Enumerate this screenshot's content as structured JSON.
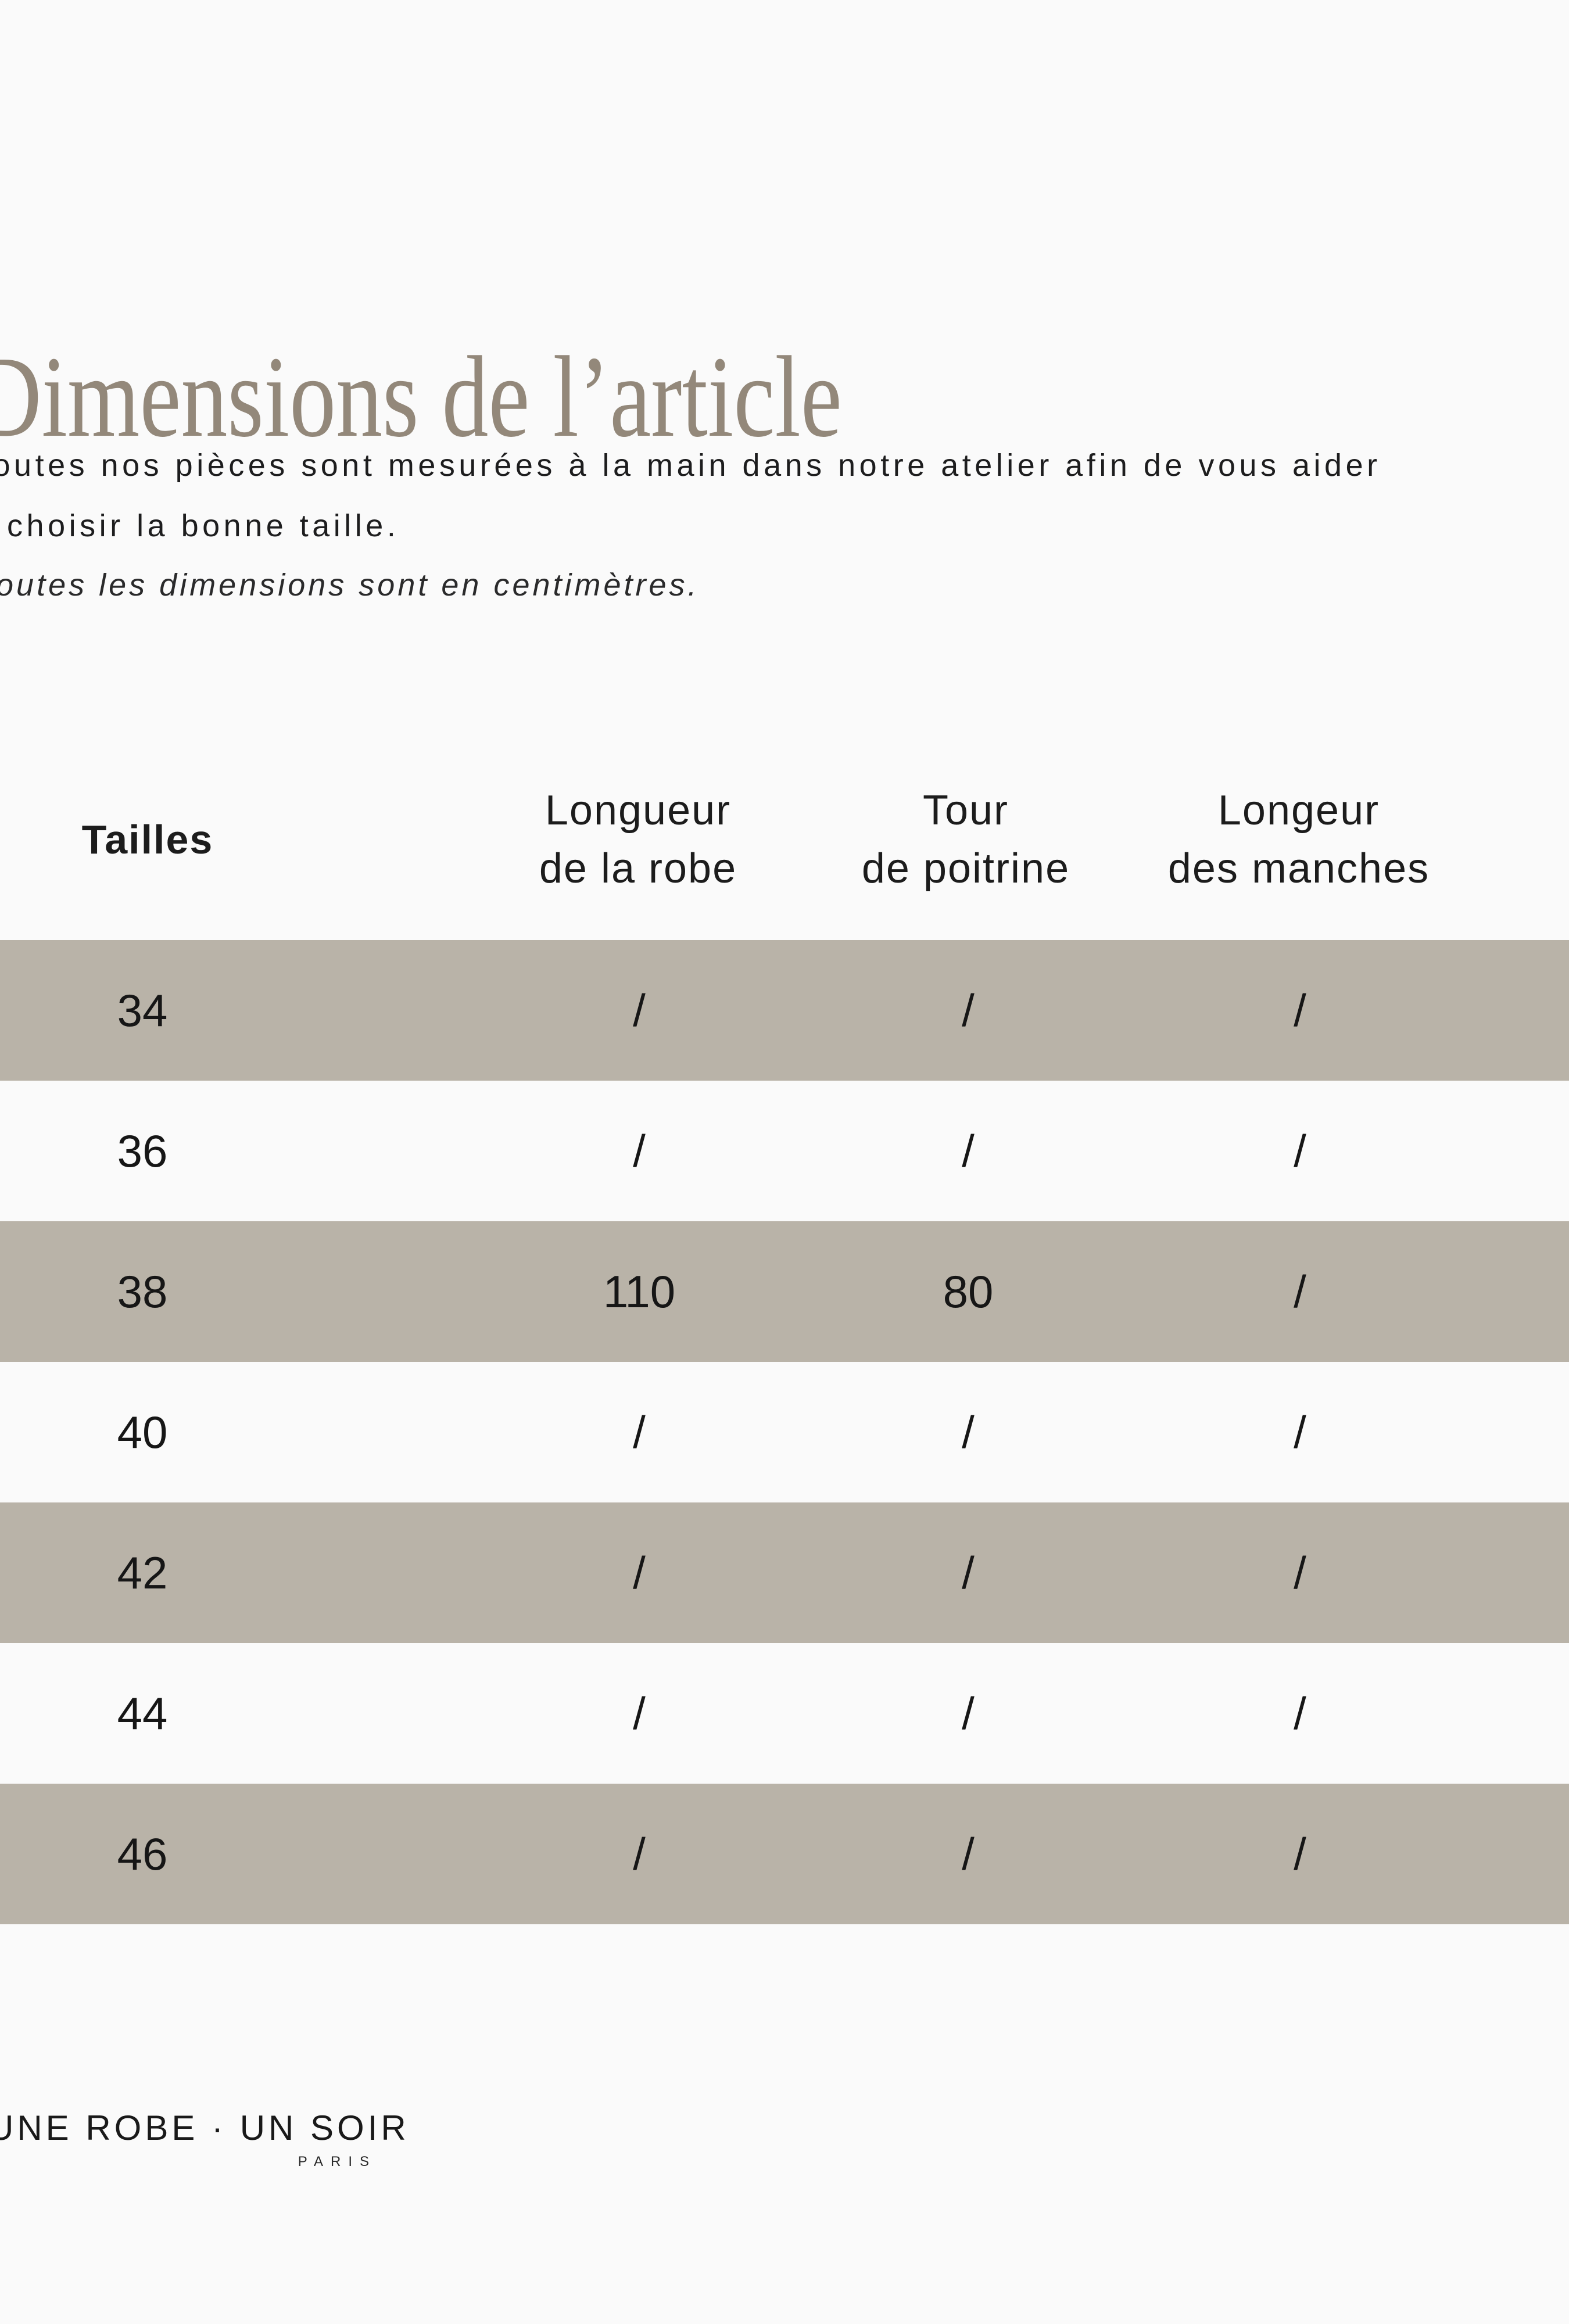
{
  "page": {
    "background": "#fafafa",
    "band_color": "#b9b3a8",
    "title_color": "#93887a",
    "text_color": "#1d1d1e"
  },
  "title": "Dimensions de l’article",
  "intro": {
    "line1": "Toutes nos pièces sont mesurées à la main dans notre atelier afin de vous aider",
    "line2": "à choisir la bonne taille.",
    "note": "Toutes les dimensions sont en centimètres."
  },
  "size_table": {
    "headers": {
      "sizes": "Tailles",
      "col1": {
        "line1": "Longueur",
        "line2": "de la robe"
      },
      "col2": {
        "line1": "Tour",
        "line2": "de poitrine"
      },
      "col3": {
        "line1": "Longeur",
        "line2": "des manches"
      }
    },
    "rows": [
      {
        "size": "34",
        "values": [
          "/",
          "/",
          "/"
        ],
        "highlighted": true
      },
      {
        "size": "36",
        "values": [
          "/",
          "/",
          "/"
        ],
        "highlighted": false
      },
      {
        "size": "38",
        "values": [
          "110",
          "80",
          "/"
        ],
        "highlighted": true
      },
      {
        "size": "40",
        "values": [
          "/",
          "/",
          "/"
        ],
        "highlighted": false
      },
      {
        "size": "42",
        "values": [
          "/",
          "/",
          "/"
        ],
        "highlighted": true
      },
      {
        "size": "44",
        "values": [
          "/",
          "/",
          "/"
        ],
        "highlighted": false
      },
      {
        "size": "46",
        "values": [
          "/",
          "/",
          "/"
        ],
        "highlighted": true
      }
    ]
  },
  "footer": {
    "brand": "UNE ROBE · UN SOIR",
    "city": "PARIS"
  }
}
